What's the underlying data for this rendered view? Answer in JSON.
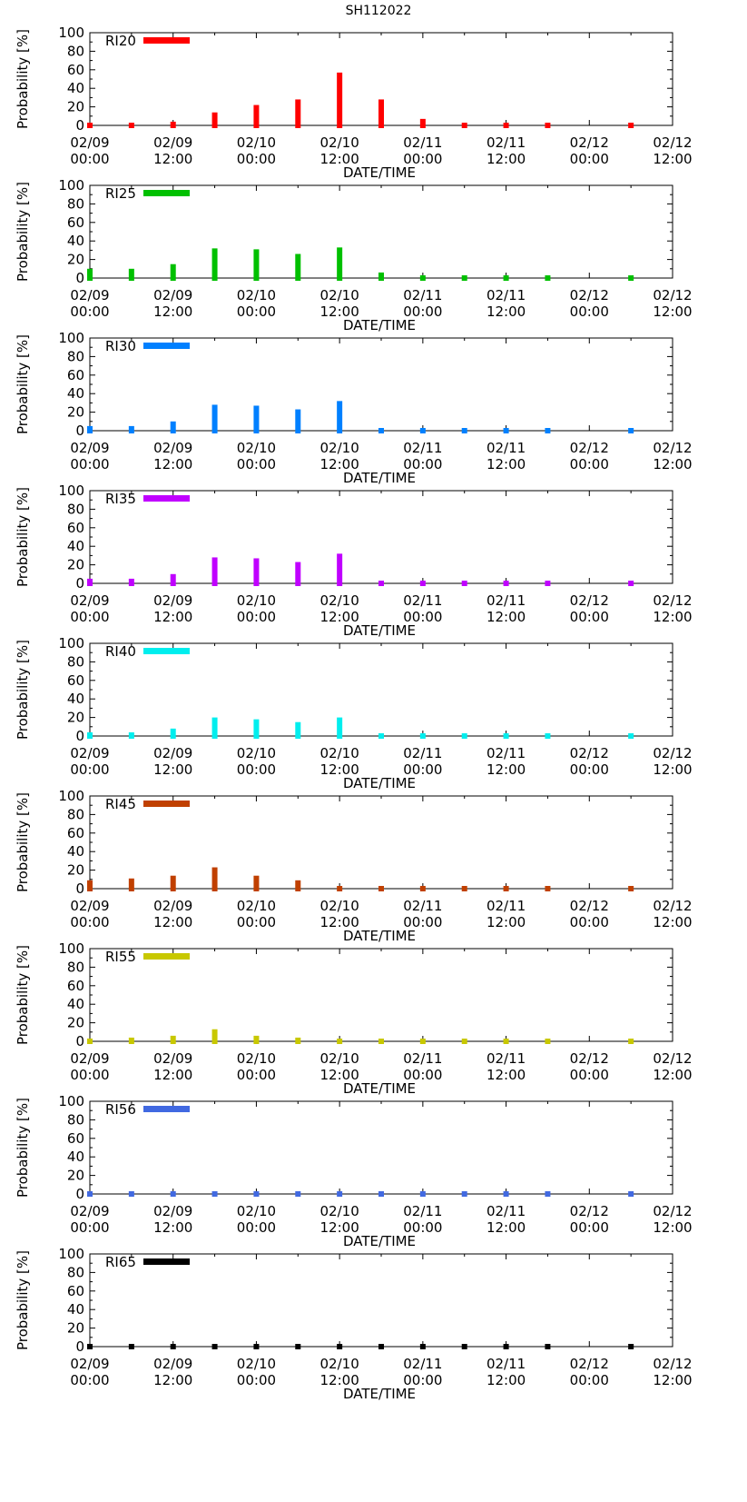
{
  "title": "SH112022",
  "chart_data": {
    "type": "bar",
    "title": "SH112022",
    "xlabel": "DATE/TIME",
    "ylabel": "Probability [%]",
    "ylim": [
      0,
      100
    ],
    "yticks": [
      0,
      20,
      40,
      60,
      80,
      100
    ],
    "xlim_hours": [
      0,
      84
    ],
    "xticks": [
      {
        "hour": 0,
        "line1": "02/09",
        "line2": "00:00"
      },
      {
        "hour": 12,
        "line1": "02/09",
        "line2": "12:00"
      },
      {
        "hour": 24,
        "line1": "02/10",
        "line2": "00:00"
      },
      {
        "hour": 36,
        "line1": "02/10",
        "line2": "12:00"
      },
      {
        "hour": 48,
        "line1": "02/11",
        "line2": "00:00"
      },
      {
        "hour": 60,
        "line1": "02/11",
        "line2": "12:00"
      },
      {
        "hour": 72,
        "line1": "02/12",
        "line2": "00:00"
      },
      {
        "hour": 84,
        "line1": "02/12",
        "line2": "12:00"
      }
    ],
    "x_hours": [
      0,
      6,
      12,
      18,
      24,
      30,
      36,
      42,
      48,
      54,
      60,
      66,
      78
    ],
    "series": [
      {
        "name": "RI20",
        "color": "#ff0000",
        "values": [
          2,
          2,
          4,
          14,
          22,
          28,
          57,
          28,
          7,
          1,
          1,
          1,
          1
        ]
      },
      {
        "name": "RI25",
        "color": "#00c000",
        "values": [
          10,
          10,
          15,
          32,
          31,
          26,
          33,
          6,
          3,
          1,
          1,
          1,
          1
        ]
      },
      {
        "name": "RI30",
        "color": "#0080ff",
        "values": [
          5,
          5,
          10,
          28,
          27,
          23,
          32,
          1,
          1,
          1,
          1,
          1,
          1
        ]
      },
      {
        "name": "RI35",
        "color": "#c000ff",
        "values": [
          5,
          5,
          10,
          28,
          27,
          23,
          32,
          1,
          1,
          1,
          1,
          1,
          1
        ]
      },
      {
        "name": "RI40",
        "color": "#00eeee",
        "values": [
          4,
          4,
          8,
          20,
          18,
          15,
          20,
          1,
          1,
          1,
          1,
          1,
          1
        ]
      },
      {
        "name": "RI45",
        "color": "#c04000",
        "values": [
          9,
          11,
          14,
          23,
          14,
          9,
          1,
          1,
          1,
          1,
          1,
          1,
          1
        ]
      },
      {
        "name": "RI55",
        "color": "#c8c800",
        "values": [
          3,
          4,
          6,
          13,
          6,
          4,
          1,
          1,
          1,
          1,
          1,
          1,
          1
        ]
      },
      {
        "name": "RI56",
        "color": "#4169e1",
        "values": [
          1,
          2,
          2,
          2,
          0,
          0,
          0,
          0,
          0,
          0,
          0,
          0,
          0
        ]
      },
      {
        "name": "RI65",
        "color": "#000000",
        "values": [
          0,
          0,
          0,
          0,
          0,
          0,
          0,
          0,
          0,
          0,
          0,
          0,
          0
        ]
      }
    ]
  }
}
